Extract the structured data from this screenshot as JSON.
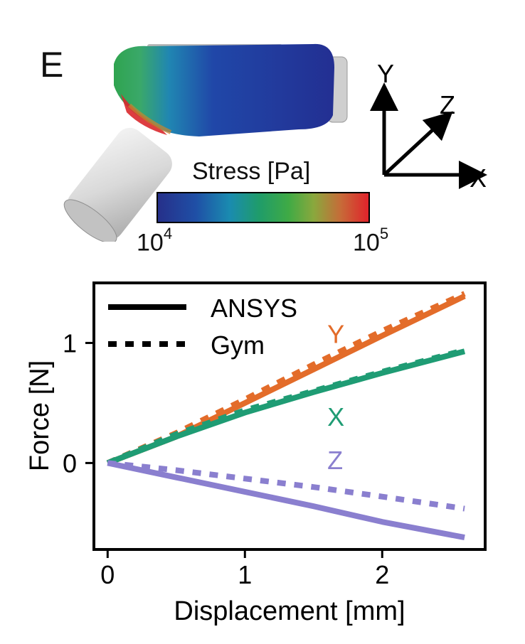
{
  "panel_label": "E",
  "coordinate_axes": {
    "y": "Y",
    "z": "Z",
    "x": "X"
  },
  "colorbar": {
    "title": "Stress [Pa]",
    "min_base": "10",
    "min_exp": "4",
    "max_base": "10",
    "max_exp": "5"
  },
  "colors": {
    "Y": "#e36c2a",
    "X": "#1f9c74",
    "Z": "#8a7fcf",
    "axis": "#000000"
  },
  "chart_data": {
    "type": "line",
    "xlabel": "Displacement [mm]",
    "ylabel": "Force [N]",
    "xlim": [
      -0.1,
      2.75
    ],
    "ylim": [
      -0.72,
      1.5
    ],
    "xticks": [
      0,
      1,
      2
    ],
    "yticks": [
      0,
      1
    ],
    "legend": {
      "placement": "top-left",
      "entries": [
        {
          "label": "ANSYS",
          "style": "solid"
        },
        {
          "label": "Gym",
          "style": "dotted"
        }
      ]
    },
    "series": [
      {
        "name": "Y",
        "style": "solid",
        "x": [
          0,
          0.5,
          1.0,
          1.5,
          2.0,
          2.6
        ],
        "y": [
          0,
          0.22,
          0.5,
          0.78,
          1.06,
          1.39
        ]
      },
      {
        "name": "Y",
        "style": "dotted",
        "x": [
          0,
          0.5,
          1.0,
          1.5,
          2.0,
          2.6
        ],
        "y": [
          0,
          0.25,
          0.53,
          0.82,
          1.1,
          1.41
        ]
      },
      {
        "name": "X",
        "style": "solid",
        "x": [
          0,
          0.5,
          1.0,
          1.5,
          2.0,
          2.6
        ],
        "y": [
          0,
          0.22,
          0.42,
          0.59,
          0.75,
          0.93
        ]
      },
      {
        "name": "X",
        "style": "dotted",
        "x": [
          0,
          0.5,
          1.0,
          1.5,
          2.0,
          2.6
        ],
        "y": [
          0,
          0.24,
          0.44,
          0.6,
          0.76,
          0.94
        ]
      },
      {
        "name": "Z",
        "style": "solid",
        "x": [
          0,
          0.5,
          1.0,
          1.5,
          2.0,
          2.6
        ],
        "y": [
          0,
          -0.12,
          -0.24,
          -0.36,
          -0.49,
          -0.62
        ]
      },
      {
        "name": "Z",
        "style": "dotted",
        "x": [
          0,
          0.5,
          1.0,
          1.5,
          2.0,
          2.6
        ],
        "y": [
          0,
          -0.06,
          -0.13,
          -0.2,
          -0.28,
          -0.38
        ]
      }
    ],
    "annotations": [
      {
        "text": "Y",
        "x": 1.6,
        "y": 1.0,
        "series": "Y"
      },
      {
        "text": "X",
        "x": 1.6,
        "y": 0.31,
        "series": "X"
      },
      {
        "text": "Z",
        "x": 1.6,
        "y": -0.05,
        "series": "Z"
      }
    ]
  }
}
